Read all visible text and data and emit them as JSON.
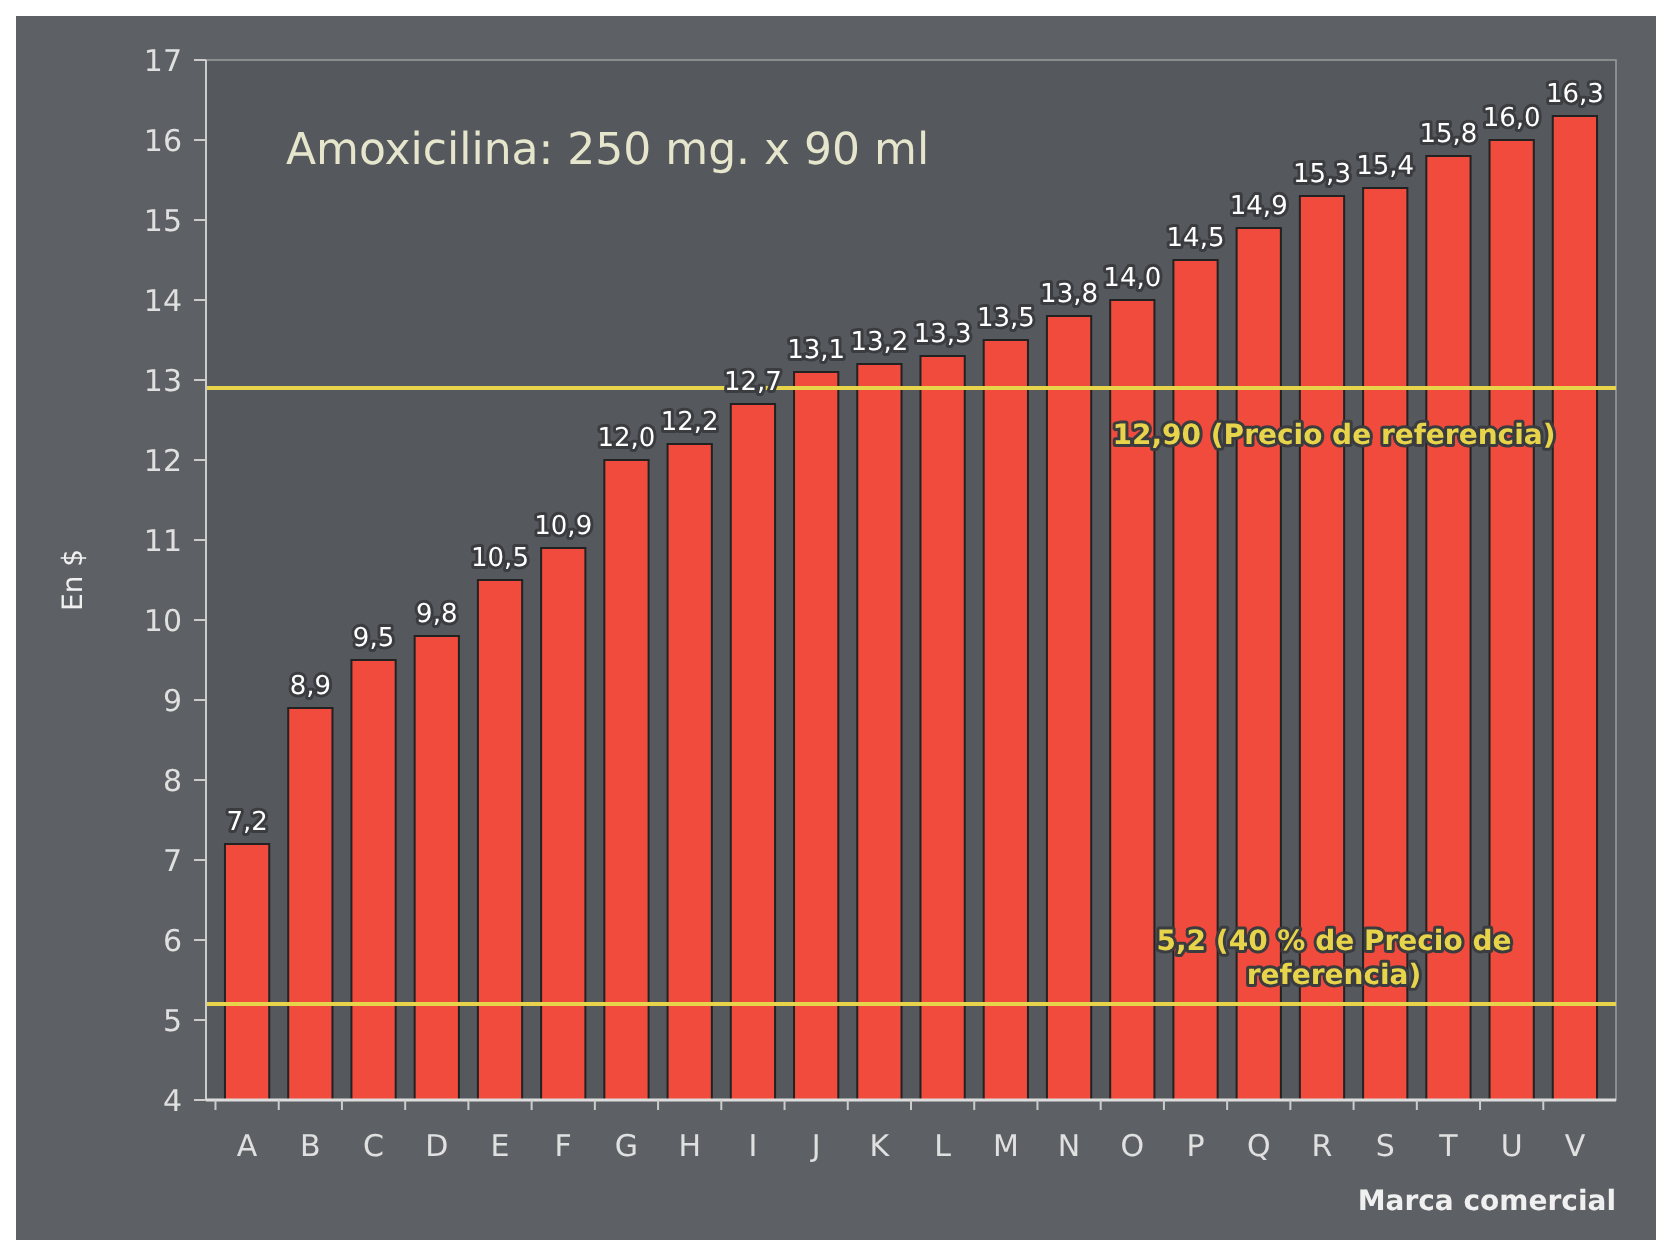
{
  "chart_data": {
    "type": "bar",
    "title": "Amoxicilina: 250 mg. x 90 ml",
    "xlabel": "Marca comercial",
    "ylabel": "En $",
    "categories": [
      "A",
      "B",
      "C",
      "D",
      "E",
      "F",
      "G",
      "H",
      "I",
      "J",
      "K",
      "L",
      "M",
      "N",
      "O",
      "P",
      "Q",
      "R",
      "S",
      "T",
      "U",
      "V"
    ],
    "values": [
      7.2,
      8.9,
      9.5,
      9.8,
      10.5,
      10.9,
      12.0,
      12.2,
      12.7,
      13.1,
      13.2,
      13.3,
      13.5,
      13.8,
      14.0,
      14.5,
      14.9,
      15.3,
      15.4,
      15.8,
      16.0,
      16.3
    ],
    "value_labels": [
      "7,2",
      "8,9",
      "9,5",
      "9,8",
      "10,5",
      "10,9",
      "12,0",
      "12,2",
      "12,7",
      "13,1",
      "13,2",
      "13,3",
      "13,5",
      "13,8",
      "14,0",
      "14,5",
      "14,9",
      "15,3",
      "15,4",
      "15,8",
      "16,0",
      "16,3"
    ],
    "color": "#f04b3c",
    "ylim": [
      4,
      17
    ],
    "yticks": [
      4,
      5,
      6,
      7,
      8,
      9,
      10,
      11,
      12,
      13,
      14,
      15,
      16,
      17
    ],
    "grid": false,
    "ref_lines": [
      {
        "axis": "y",
        "value": 12.9,
        "label": "12,90 (Precio de referencia)",
        "color": "#e8d44a"
      },
      {
        "axis": "y",
        "value": 5.2,
        "label": "5,2 (40 % de Precio de referencia)",
        "color": "#e8d44a"
      }
    ]
  }
}
